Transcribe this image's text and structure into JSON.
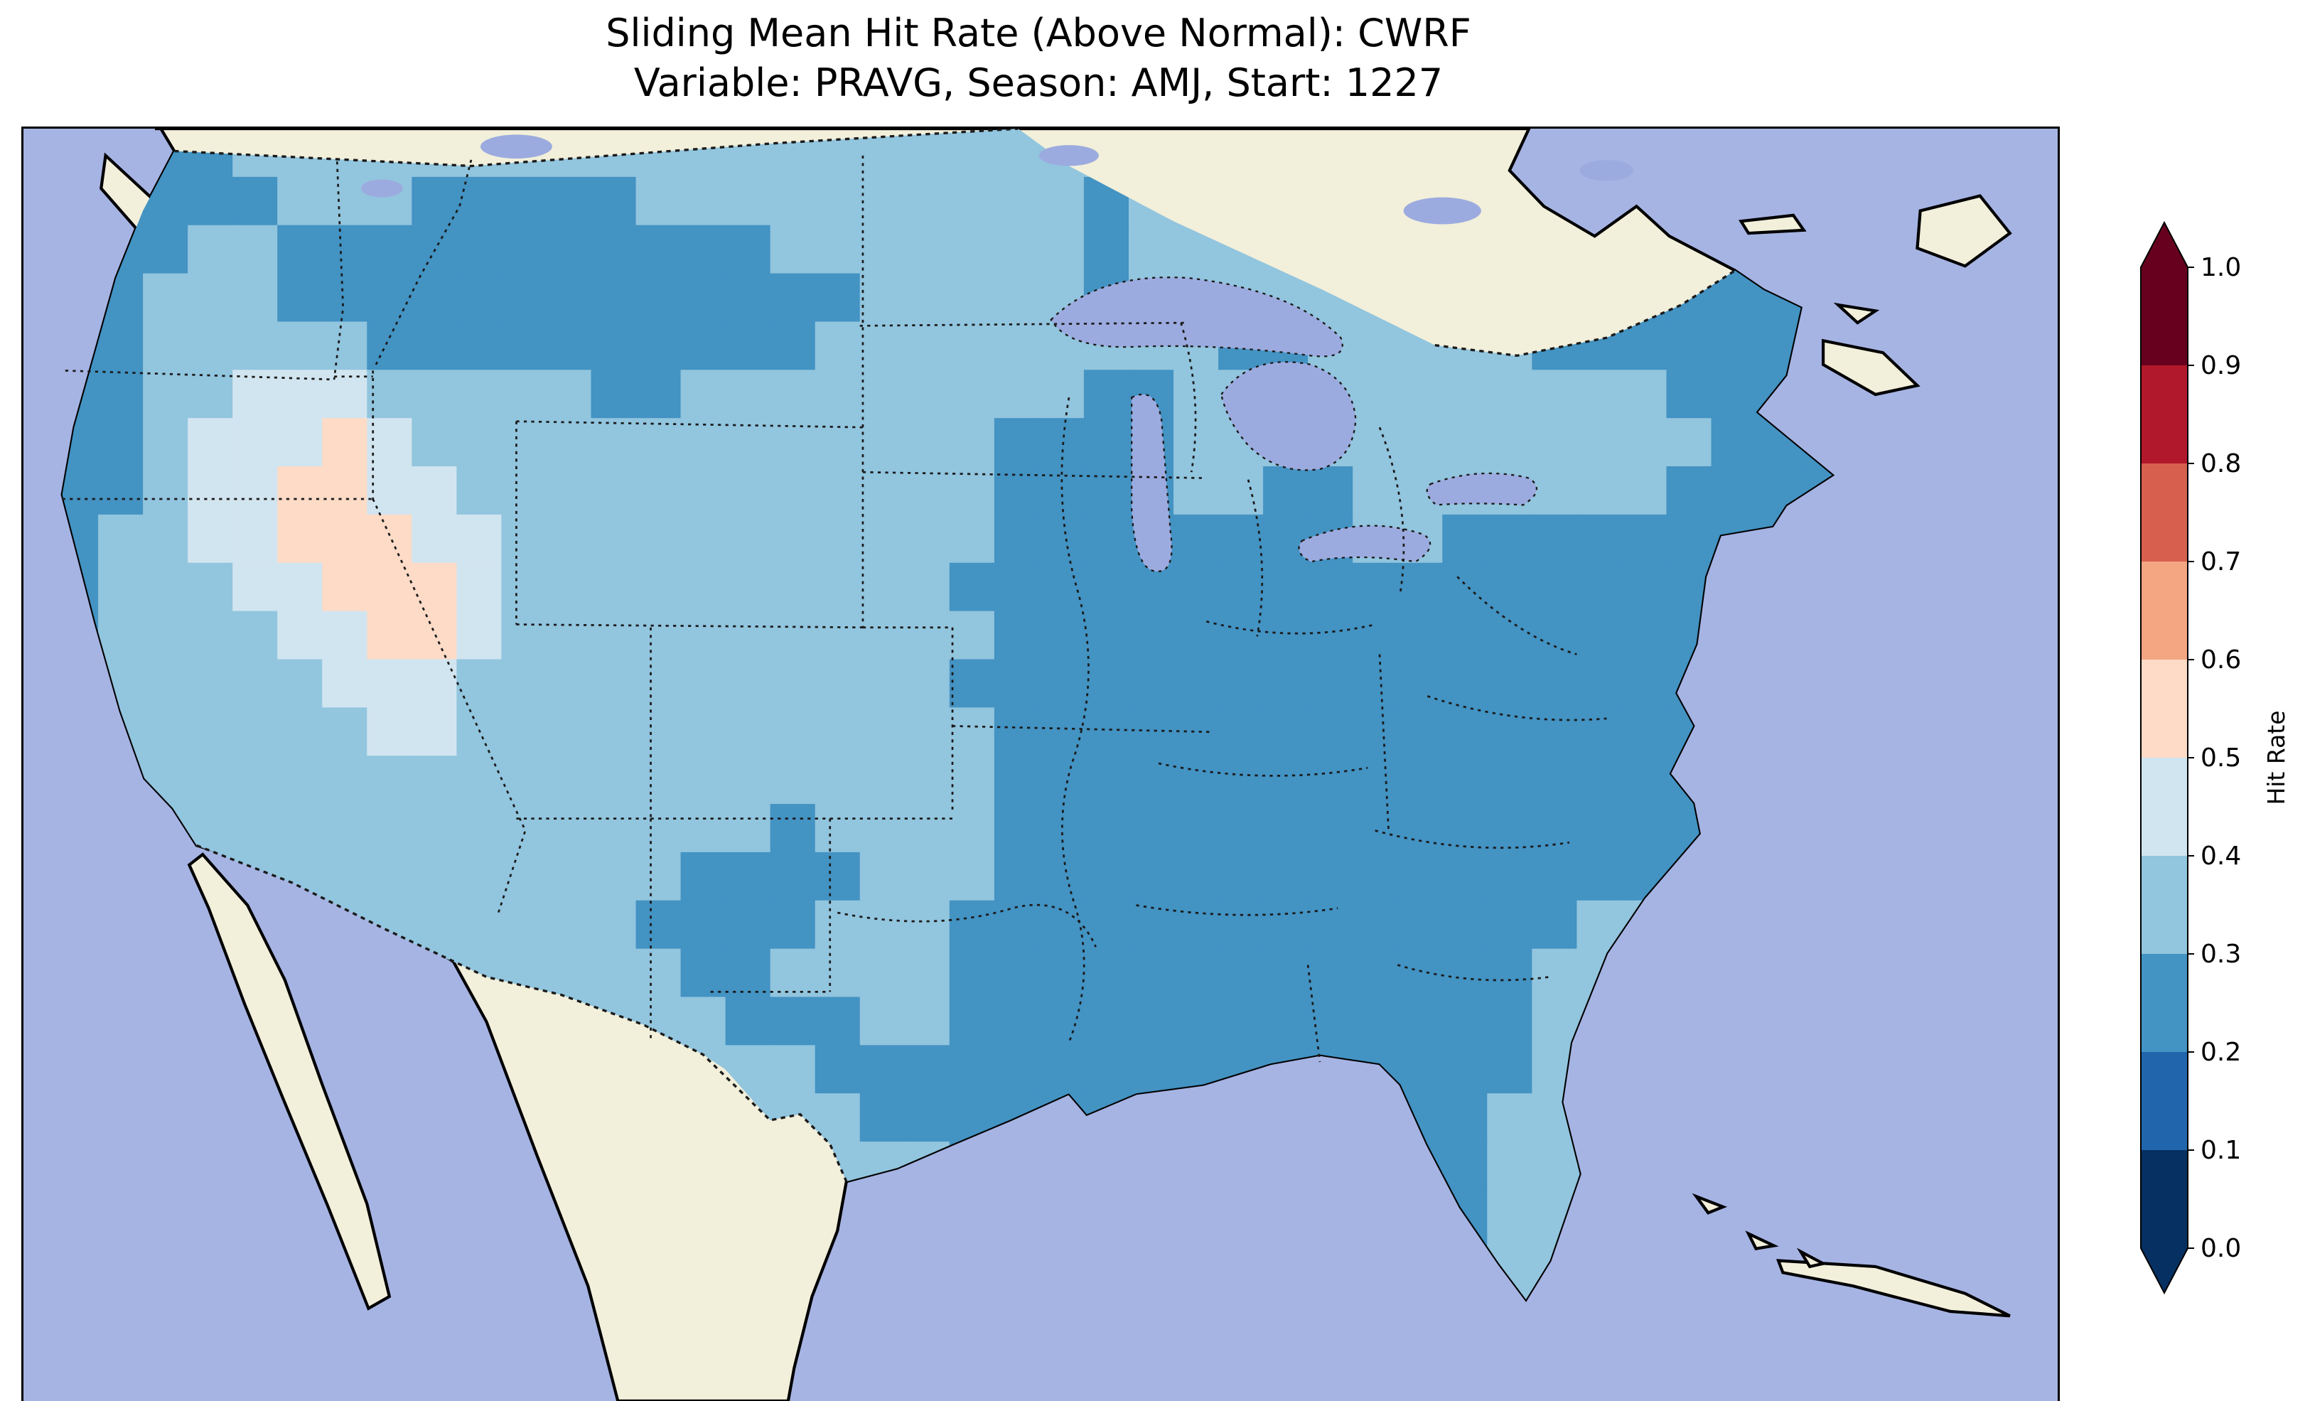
{
  "header": {
    "title_line1": "Sliding Mean Hit Rate (Above Normal): CWRF",
    "title_line2": "Variable: PRAVG, Season: AMJ, Start: 1227"
  },
  "colorbar": {
    "label": "Hit Rate",
    "ticks_top_to_bottom": [
      "1.0",
      "0.9",
      "0.8",
      "0.7",
      "0.6",
      "0.5",
      "0.4",
      "0.3",
      "0.2",
      "0.1",
      "0.0"
    ],
    "segment_colors_top_to_bottom": [
      "#67001f",
      "#b2182b",
      "#d6604d",
      "#f4a582",
      "#fddbc7",
      "#d1e5f0",
      "#92c5de",
      "#4393c3",
      "#2166ac",
      "#053061"
    ],
    "over_color": "#67001f",
    "under_color": "#053061"
  },
  "map_colors": {
    "ocean": "#a6b4e4",
    "land": "#f2efda",
    "lakes": "#9cabdf",
    "coastline": "#000000",
    "borders": "#1a1a1a"
  },
  "chart_data": {
    "type": "heatmap",
    "title": "Sliding Mean Hit Rate (Above Normal): CWRF",
    "subtitle": "Variable: PRAVG, Season: AMJ, Start: 1227",
    "model": "CWRF",
    "variable": "PRAVG",
    "season": "AMJ",
    "start": "1227",
    "quantity": "Hit Rate",
    "region": "Contiguous United States (CONUS) on a Lambert-conformal style map; Canada and Mexico masked (no data)",
    "colormap": "RdBu_r, discrete 0.1 bins from 0.0 to 1.0, pointed extensions on both ends",
    "value_range": [
      0.0,
      1.0
    ],
    "observed_value_range_on_map": [
      0.2,
      0.6
    ],
    "bins": [
      {
        "key": "a",
        "range": "0.2-0.3",
        "color": "#4393c3"
      },
      {
        "key": "b",
        "range": "0.3-0.4",
        "color": "#92c5de"
      },
      {
        "key": "c",
        "range": "0.4-0.5",
        "color": "#d1e5f0"
      },
      {
        "key": "d",
        "range": "0.5-0.6",
        "color": "#fddbc7"
      }
    ],
    "grid_note": "Coarse 40x25 approximation of the gridded hit-rate field; row 0 = north edge; cells outside the U.S. outline are clipped away",
    "grid": [
      "aaaabbbbbbbbbbbbbbbbbbbbbbbbbbbbbbbbbbbb",
      "aaaaabbbaaaaabbbbbbbbbbabbbbbbbbbbbbaaaa",
      "aaabbaaaaaaaaaaabbbbbbbabbbbbbbbbbbaaaaa",
      "aabbbaaaaaaaaaaaaabbbbbabbbbbbbbbaaaaaaa",
      "aabbbbbaaaaaaaaaabbbbbbbbbaabbbbbaaaaaaa",
      "aabbcccbbbbbaabbbbbbbbbaabbbbbbbbbbbaaaa",
      "aabcccdcbbbbbbbbbbbbbaaaabbbbbbbbbbbbaaa",
      "aabccddccbbbbbbbbbbbbaaaabbaabbbbbbbaaaa",
      "abbccdddccbbbbbbbbbbbaaaaaaaabbaaaaaaaaa",
      "abbbccdddcbbbbbbbbbbaaaaaaaaaaaaaaaaaaaa",
      "abbbbccddcbbbbbbbbbbbaaaaaaaaaaaaaaaaaaa",
      "abbbbbcccbbbbbbbbbbbaaaaaaaaaaaaaaaaaaaa",
      "bbbbbbbccbbbbbbbbbbbbaaaaaaaaaaaaaaaaaaa",
      "bbbbbbbbbbbbbbbbbbbbbaaaaaaaaaaaaaaaaaaa",
      "bbbbbbbbbbbbbbbbabbbbaaaaaaaaaaaaaaaaaaa",
      "bbbbbbbbbbbbbbaaaabbbaaaaaaaaaaaaaaaaaaa",
      "bbbbbbbbbbbbbaaaabbbaaaaaaaaaaaaaabbbaaa",
      "bbbbbbbbbbbbbbaabbbbaaaaaaaaaaaaabbbbaaa",
      "bbbbbbbbbbbbbbbaaabbaaaaaaaaaaaaabbaaaaa",
      "bbbbbbbbbbbbbbbbbaaaaaaaaaaaaaaaabbbbbbb",
      "bbbbbbbbbbbbbbbbbbaaaaaaaaaaaaaabbbbbbbb",
      "bbbbbbbbbbbbbbbbbbbbaaaaaaaaaaaabbbbbbbb",
      "bbbbbbbbbbbbbbbbbbbbbbbbbbbbbbaabbbbbbbb",
      "bbbbbbbbbbbbbbbbbbbbbbbbbbbbbbbabbbbbbbb",
      "bbbbbbbbbbbbbbbbbbbbbbbbbbbbbbbbbbbbbbbb"
    ],
    "pattern_summary": [
      "Hit rates of 0.2-0.3 (medium blue) dominate the eastern half of the U.S., the Pacific Northwest coast and the northern Rockies",
      "Hit rates of 0.3-0.4 (light blue) cover the central plains, Texas and parts of the upper Midwest",
      "Hit rates of 0.4-0.5 (pale blue) appear over the Great Basin (Nevada/Utah/Arizona)",
      "Small near-white 0.5-0.6 maxima occur over Utah and Nevada",
      "No grid cells exceed 0.6; the red half of the colorbar is unused"
    ]
  }
}
